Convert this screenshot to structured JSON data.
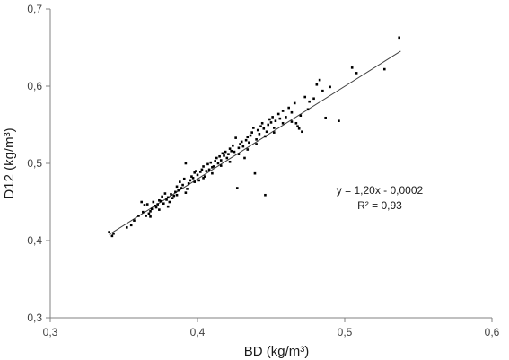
{
  "chart_data": {
    "type": "scatter",
    "title": "",
    "xlabel": "BD (kg/m³)",
    "ylabel": "D12 (kg/m³)",
    "xlim": [
      0.3,
      0.6
    ],
    "ylim": [
      0.3,
      0.7
    ],
    "x_ticks": [
      "0,3",
      "0,4",
      "0,5",
      "0,6"
    ],
    "y_ticks": [
      "0,3",
      "0,4",
      "0,5",
      "0,6",
      "0,7"
    ],
    "grid": false,
    "legend": "none",
    "point_color": "#000000",
    "trendline": {
      "type": "linear",
      "slope": 1.2,
      "intercept": -0.0002,
      "x_range": [
        0.34,
        0.538
      ],
      "equation_label": "y = 1,20x - 0,0002",
      "r2_label": "R² = 0,93",
      "color": "#404040"
    },
    "series": [
      {
        "points": [
          [
            0.34,
            0.411
          ],
          [
            0.342,
            0.406
          ],
          [
            0.343,
            0.409
          ],
          [
            0.352,
            0.417
          ],
          [
            0.357,
            0.426
          ],
          [
            0.36,
            0.432
          ],
          [
            0.362,
            0.45
          ],
          [
            0.363,
            0.437
          ],
          [
            0.364,
            0.446
          ],
          [
            0.365,
            0.432
          ],
          [
            0.366,
            0.447
          ],
          [
            0.367,
            0.435
          ],
          [
            0.368,
            0.431
          ],
          [
            0.369,
            0.441
          ],
          [
            0.37,
            0.45
          ],
          [
            0.371,
            0.445
          ],
          [
            0.372,
            0.443
          ],
          [
            0.373,
            0.447
          ],
          [
            0.374,
            0.44
          ],
          [
            0.375,
            0.451
          ],
          [
            0.376,
            0.457
          ],
          [
            0.377,
            0.448
          ],
          [
            0.378,
            0.461
          ],
          [
            0.379,
            0.453
          ],
          [
            0.38,
            0.456
          ],
          [
            0.381,
            0.45
          ],
          [
            0.382,
            0.46
          ],
          [
            0.383,
            0.455
          ],
          [
            0.384,
            0.458
          ],
          [
            0.385,
            0.463
          ],
          [
            0.386,
            0.47
          ],
          [
            0.387,
            0.465
          ],
          [
            0.388,
            0.476
          ],
          [
            0.389,
            0.468
          ],
          [
            0.39,
            0.472
          ],
          [
            0.391,
            0.48
          ],
          [
            0.392,
            0.5
          ],
          [
            0.393,
            0.467
          ],
          [
            0.394,
            0.474
          ],
          [
            0.395,
            0.478
          ],
          [
            0.396,
            0.483
          ],
          [
            0.397,
            0.481
          ],
          [
            0.398,
            0.488
          ],
          [
            0.399,
            0.49
          ],
          [
            0.4,
            0.485
          ],
          [
            0.401,
            0.478
          ],
          [
            0.402,
            0.489
          ],
          [
            0.403,
            0.492
          ],
          [
            0.404,
            0.496
          ],
          [
            0.405,
            0.483
          ],
          [
            0.406,
            0.49
          ],
          [
            0.407,
            0.499
          ],
          [
            0.408,
            0.492
          ],
          [
            0.409,
            0.501
          ],
          [
            0.41,
            0.487
          ],
          [
            0.411,
            0.496
          ],
          [
            0.412,
            0.503
          ],
          [
            0.413,
            0.507
          ],
          [
            0.414,
            0.5
          ],
          [
            0.415,
            0.509
          ],
          [
            0.416,
            0.504
          ],
          [
            0.417,
            0.513
          ],
          [
            0.418,
            0.51
          ],
          [
            0.419,
            0.515
          ],
          [
            0.42,
            0.507
          ],
          [
            0.421,
            0.512
          ],
          [
            0.422,
            0.519
          ],
          [
            0.423,
            0.516
          ],
          [
            0.424,
            0.523
          ],
          [
            0.425,
            0.515
          ],
          [
            0.426,
            0.533
          ],
          [
            0.427,
            0.468
          ],
          [
            0.428,
            0.52
          ],
          [
            0.429,
            0.525
          ],
          [
            0.43,
            0.528
          ],
          [
            0.431,
            0.522
          ],
          [
            0.432,
            0.507
          ],
          [
            0.433,
            0.53
          ],
          [
            0.434,
            0.534
          ],
          [
            0.435,
            0.527
          ],
          [
            0.436,
            0.536
          ],
          [
            0.437,
            0.54
          ],
          [
            0.438,
            0.546
          ],
          [
            0.439,
            0.487
          ],
          [
            0.44,
            0.531
          ],
          [
            0.441,
            0.543
          ],
          [
            0.442,
            0.538
          ],
          [
            0.443,
            0.548
          ],
          [
            0.444,
            0.552
          ],
          [
            0.445,
            0.545
          ],
          [
            0.446,
            0.459
          ],
          [
            0.447,
            0.541
          ],
          [
            0.448,
            0.55
          ],
          [
            0.449,
            0.557
          ],
          [
            0.45,
            0.553
          ],
          [
            0.451,
            0.56
          ],
          [
            0.452,
            0.546
          ],
          [
            0.453,
            0.555
          ],
          [
            0.455,
            0.564
          ],
          [
            0.456,
            0.558
          ],
          [
            0.458,
            0.568
          ],
          [
            0.46,
            0.56
          ],
          [
            0.462,
            0.572
          ],
          [
            0.464,
            0.566
          ],
          [
            0.466,
            0.578
          ],
          [
            0.467,
            0.552
          ],
          [
            0.468,
            0.548
          ],
          [
            0.469,
            0.545
          ],
          [
            0.471,
            0.541
          ],
          [
            0.473,
            0.586
          ],
          [
            0.476,
            0.58
          ],
          [
            0.479,
            0.584
          ],
          [
            0.481,
            0.602
          ],
          [
            0.483,
            0.608
          ],
          [
            0.485,
            0.594
          ],
          [
            0.487,
            0.559
          ],
          [
            0.49,
            0.599
          ],
          [
            0.496,
            0.555
          ],
          [
            0.505,
            0.624
          ],
          [
            0.508,
            0.617
          ],
          [
            0.527,
            0.622
          ],
          [
            0.537,
            0.663
          ],
          [
            0.355,
            0.42
          ],
          [
            0.368,
            0.438
          ],
          [
            0.374,
            0.452
          ],
          [
            0.38,
            0.444
          ],
          [
            0.386,
            0.459
          ],
          [
            0.392,
            0.462
          ],
          [
            0.398,
            0.476
          ],
          [
            0.404,
            0.481
          ],
          [
            0.41,
            0.495
          ],
          [
            0.416,
            0.497
          ],
          [
            0.422,
            0.502
          ],
          [
            0.428,
            0.512
          ],
          [
            0.434,
            0.518
          ],
          [
            0.44,
            0.525
          ],
          [
            0.446,
            0.535
          ],
          [
            0.452,
            0.54
          ],
          [
            0.458,
            0.552
          ],
          [
            0.464,
            0.554
          ],
          [
            0.47,
            0.562
          ],
          [
            0.475,
            0.57
          ]
        ]
      }
    ]
  }
}
